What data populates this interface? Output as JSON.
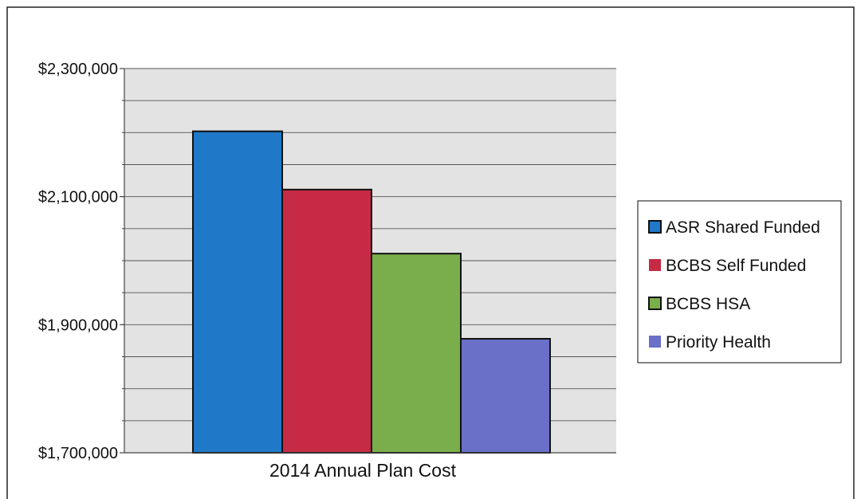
{
  "chart_data": {
    "type": "bar",
    "categories": [
      "2014 Annual Plan Cost"
    ],
    "series": [
      {
        "name": "ASR Shared Funded",
        "values": [
          2202000
        ],
        "color": "#1f78c8"
      },
      {
        "name": "BCBS Self Funded",
        "values": [
          2111000
        ],
        "color": "#c62a45"
      },
      {
        "name": "BCBS HSA",
        "values": [
          2011000
        ],
        "color": "#7aae4a"
      },
      {
        "name": "Priority Health",
        "values": [
          1878000
        ],
        "color": "#6a6fc8"
      }
    ],
    "title": "",
    "xlabel": "2014 Annual Plan Cost",
    "ylabel": "",
    "ylim": [
      1700000,
      2300000
    ],
    "yticks": [
      {
        "value": 1700000,
        "label": "$1,700,000"
      },
      {
        "value": 1900000,
        "label": "$1,900,000"
      },
      {
        "value": 2100000,
        "label": "$2,100,000"
      },
      {
        "value": 2300000,
        "label": "$2,300,000"
      }
    ],
    "grid": true,
    "legend": "right",
    "plot_background": "#e3e3e3"
  }
}
